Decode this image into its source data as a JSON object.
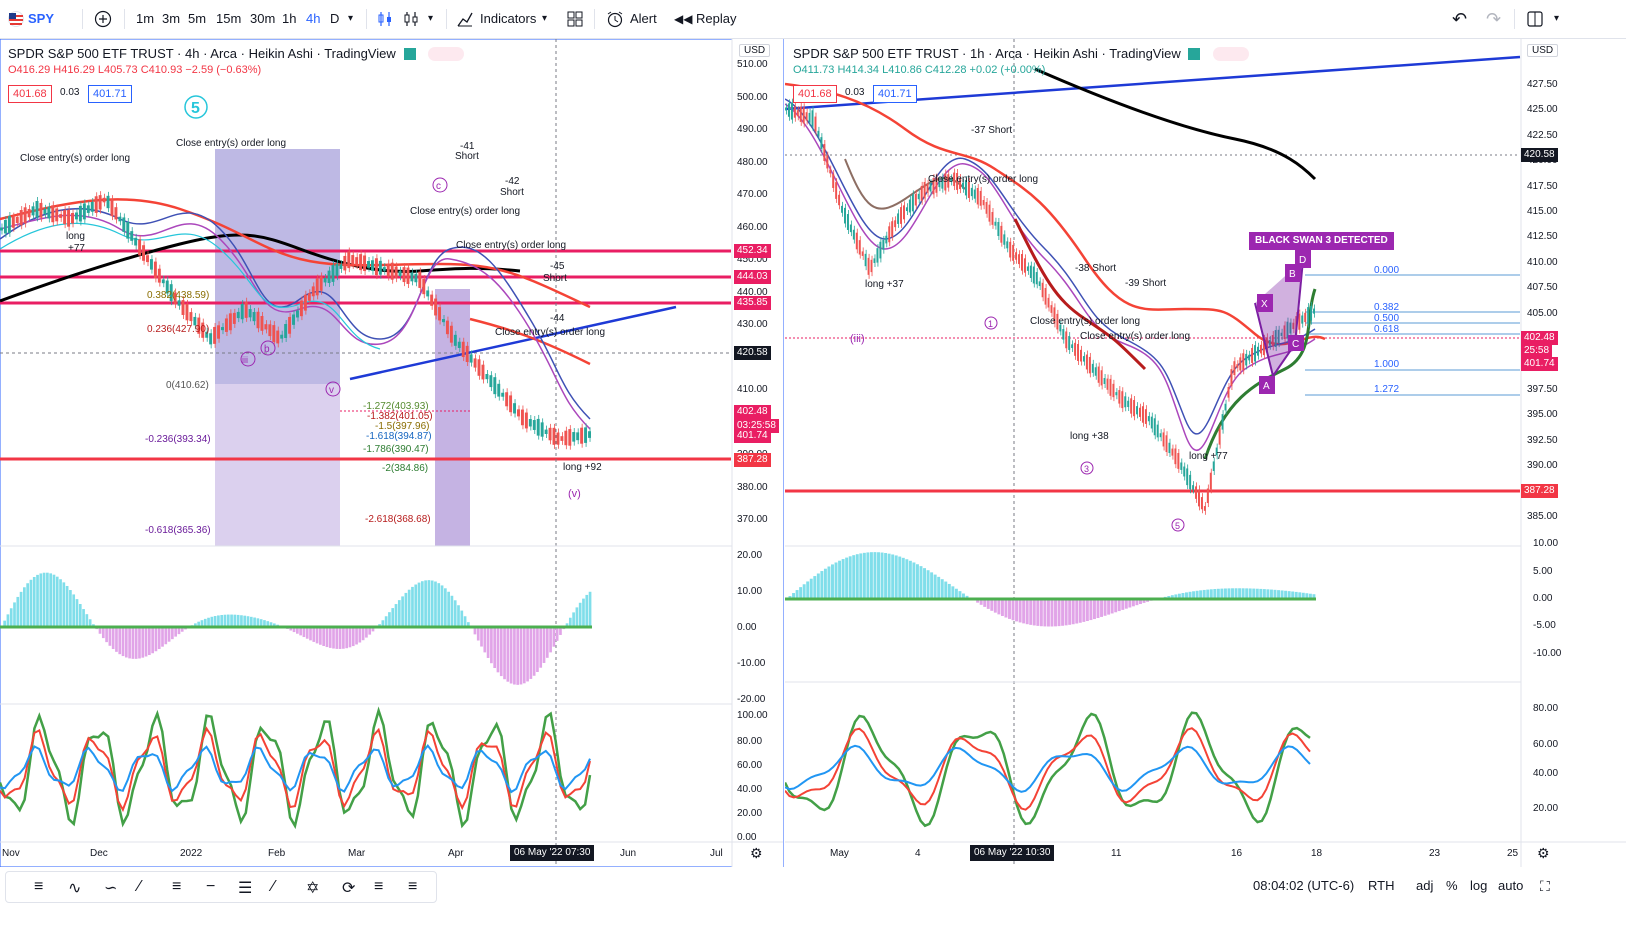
{
  "toolbar": {
    "symbol": "SPY",
    "intervals": [
      "1m",
      "3m",
      "5m",
      "15m",
      "30m",
      "1h",
      "4h",
      "D"
    ],
    "selected_interval": "4h",
    "indicators_label": "Indicators",
    "alert_label": "Alert",
    "replay_label": "Replay"
  },
  "left_chart": {
    "title": "SPDR S&P 500 ETF TRUST · 4h · Arca · Heikin Ashi · TradingView",
    "ohlc": "O416.29 H416.29 L405.73 C410.93 −2.59 (−0.63%)",
    "bid": "401.68",
    "spread": "0.03",
    "ask": "401.71",
    "currency": "USD",
    "price_ticks": [
      "510.00",
      "500.00",
      "490.00",
      "480.00",
      "470.00",
      "460.00",
      "450.00",
      "440.00",
      "430.00",
      "420.00",
      "410.00",
      "400.00",
      "390.00",
      "380.00",
      "370.00"
    ],
    "price_labels": [
      {
        "text": "452.34",
        "color": "#e91e63"
      },
      {
        "text": "444.03",
        "color": "#e91e63"
      },
      {
        "text": "435.85",
        "color": "#e91e63"
      },
      {
        "text": "420.58",
        "color": "#131722"
      },
      {
        "text": "402.48",
        "color": "#e91e63"
      },
      {
        "text": "03:25:58",
        "color": "#e91e63"
      },
      {
        "text": "401.74",
        "color": "#e91e63"
      },
      {
        "text": "387.28",
        "color": "#f23645"
      }
    ],
    "fib_levels": [
      "0.382(438.59)",
      "0.236(427.90)",
      "0(410.62)",
      "-0.236(393.34)",
      "-0.618(365.36)"
    ],
    "fib_ext": [
      "-1.272(403.93)",
      "-1.382(401.05)",
      "-1.5(397.96)",
      "-1.618(394.87)",
      "-1.786(390.47)",
      "-2(384.86)",
      "-2.618(368.68)"
    ],
    "macd_ticks": [
      "20.00",
      "10.00",
      "0.00",
      "-10.00",
      "-20.00"
    ],
    "stoch_ticks": [
      "100.00",
      "80.00",
      "60.00",
      "40.00",
      "20.00",
      "0.00"
    ],
    "x_labels": [
      "Nov",
      "Dec",
      "2022",
      "Feb",
      "Mar",
      "Apr",
      "Jun",
      "Jul"
    ],
    "date_badge": "06 May '22   07:30",
    "annotations": [
      "Short",
      "Close entry(s) order long",
      "long",
      "+77",
      "-41",
      "-42",
      "-45",
      "-44",
      "long +92",
      "(v)"
    ]
  },
  "right_chart": {
    "title": "SPDR S&P 500 ETF TRUST · 1h · Arca · Heikin Ashi · TradingView",
    "ohlc": "O411.73 H414.34 L410.86 C412.28 +0.02 (+0.00%)",
    "bid": "401.68",
    "spread": "0.03",
    "ask": "401.71",
    "currency": "USD",
    "price_ticks": [
      "427.50",
      "425.00",
      "422.50",
      "420.00",
      "417.50",
      "415.00",
      "412.50",
      "410.00",
      "407.50",
      "405.00",
      "402.50",
      "400.00",
      "397.50",
      "395.00",
      "392.50",
      "390.00",
      "387.50",
      "385.00"
    ],
    "price_labels": [
      {
        "text": "420.58",
        "color": "#131722"
      },
      {
        "text": "402.48",
        "color": "#e91e63"
      },
      {
        "text": "25:58",
        "color": "#e91e63"
      },
      {
        "text": "401.74",
        "color": "#e91e63"
      },
      {
        "text": "387.28",
        "color": "#f23645"
      }
    ],
    "fib_right": [
      "0.000",
      "0.382",
      "0.500",
      "0.618",
      "1.000",
      "1.272"
    ],
    "macd_ticks": [
      "10.00",
      "5.00",
      "0.00",
      "-5.00",
      "-10.00"
    ],
    "stoch_ticks": [
      "80.00",
      "60.00",
      "40.00",
      "20.00"
    ],
    "x_labels": [
      "May",
      "4",
      "11",
      "16",
      "18",
      "23",
      "25"
    ],
    "date_badge": "06 May '22   10:30",
    "black_swan": "BLACK SWAN 3 DETECTED",
    "annotations": [
      "-37 Short",
      "Close entry(s) order long",
      "-38 Short",
      "-39 Short",
      "long +37",
      "long +38",
      "long +77"
    ]
  },
  "status": {
    "time": "08:04:02 (UTC-6)",
    "session": "RTH",
    "adj": "adj",
    "percent": "%",
    "log": "log",
    "auto": "auto"
  },
  "colors": {
    "accent": "#2962ff",
    "red": "#f23645",
    "pink": "#e91e63",
    "purple": "#9c27b0",
    "green": "#4caf50",
    "teal": "#26c6da"
  }
}
